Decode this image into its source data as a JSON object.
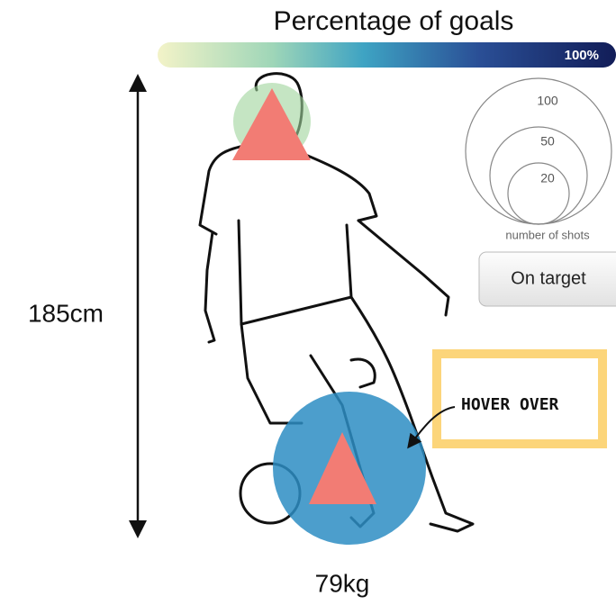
{
  "header": {
    "title": "Percentage of goals",
    "scale_max_label": "100%"
  },
  "legend": {
    "sizes": [
      "100",
      "50",
      "20"
    ],
    "caption": "number of shots"
  },
  "button": {
    "label": "On target"
  },
  "player": {
    "height": "185cm",
    "weight": "79kg"
  },
  "callout": {
    "label": "HOVER OVER"
  }
}
